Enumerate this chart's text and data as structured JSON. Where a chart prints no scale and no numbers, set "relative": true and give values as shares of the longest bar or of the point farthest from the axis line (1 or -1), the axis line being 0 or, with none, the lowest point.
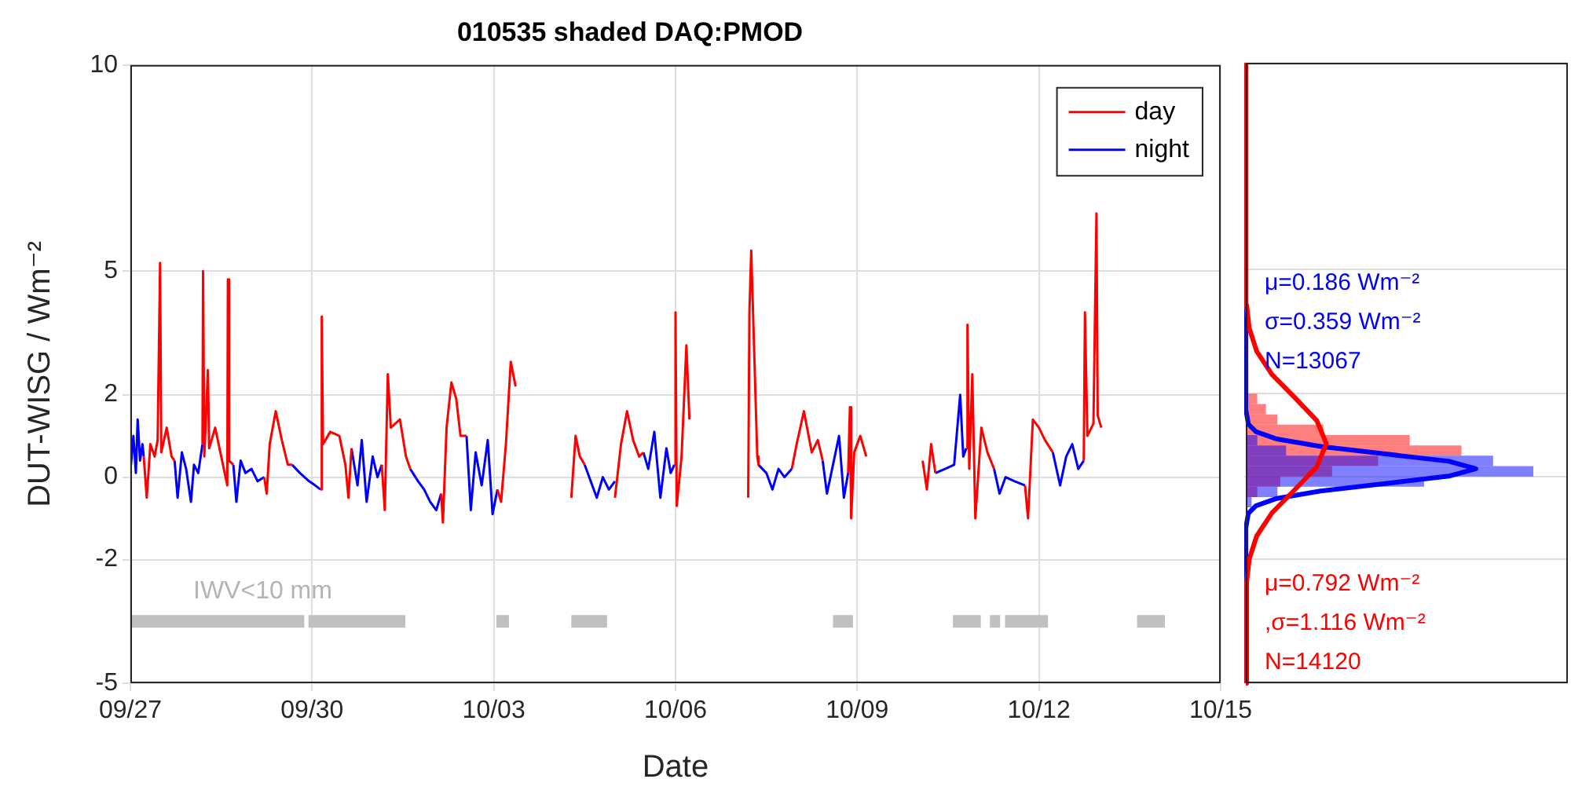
{
  "chart_data": [
    {
      "type": "line",
      "title": "010535 shaded DAQ:PMOD",
      "xlabel": "Date",
      "ylabel": "DUT-WISG / Wm⁻²",
      "xlim": [
        "--09-27",
        "--10-15"
      ],
      "xticks": [
        {
          "value": "--09-27",
          "label": "09/27"
        },
        {
          "value": "--09-30",
          "label": "09/30"
        },
        {
          "value": "--10-03",
          "label": "10/03"
        },
        {
          "value": "--10-06",
          "label": "10/06"
        },
        {
          "value": "--10-09",
          "label": "10/09"
        },
        {
          "value": "--10-12",
          "label": "10/12"
        },
        {
          "value": "--10-15",
          "label": "10/15"
        }
      ],
      "ylim": [
        -5,
        10
      ],
      "yticks": [
        -5,
        -2,
        0,
        2,
        5,
        10
      ],
      "grid": true,
      "legend": "top right",
      "annotations": [
        "IWV<10 mm"
      ],
      "series": [
        {
          "name": "day",
          "color": "#ff0000",
          "x": [
            "--09-27T05:17",
            "--09-27T06:29",
            "--09-27T07:55",
            "--09-27T09:36",
            "--09-27T10:48",
            "--09-27T11:46",
            "--09-27T12:14",
            "--09-27T14:24",
            "--09-27T16:19",
            "--09-27T17:31",
            null,
            "--09-28T04:34",
            "--09-28T04:48",
            "--09-28T05:17",
            "--09-28T06:43",
            "--09-28T07:12",
            "--09-28T09:36",
            "--09-28T12:00",
            "--09-28T14:24",
            "--09-28T14:38",
            "--09-28T15:07",
            "--09-28T16:48",
            null,
            "--09-29T05:02",
            "--09-29T06:00",
            "--09-29T07:12",
            "--09-29T09:36",
            "--09-29T12:00",
            "--09-29T14:24",
            "--09-29T16:05",
            null,
            "--09-30T03:22",
            "--09-30T03:50",
            "--09-30T04:19",
            "--09-30T07:12",
            "--09-30T10:48",
            "--09-30T13:12",
            "--09-30T14:24",
            "--09-30T15:36",
            null,
            "--10-01T03:36",
            "--10-01T04:48",
            "--10-01T06:00",
            "--10-01T07:12",
            "--10-01T10:48",
            "--10-01T13:12",
            "--10-01T14:53",
            null,
            "--10-02T03:07",
            "--10-02T03:50",
            "--10-02T05:17",
            "--10-02T07:12",
            "--10-02T09:07",
            "--10-02T10:48",
            "--10-02T13:12",
            null,
            "--10-03T01:26",
            "--10-03T02:53",
            "--10-03T04:48",
            "--10-03T06:43",
            "--10-03T08:38",
            null,
            "--10-04T06:43",
            "--10-04T08:24",
            "--10-04T10:05",
            "--10-04T12:00",
            null,
            "--10-05T00:00",
            "--10-05T02:24",
            "--10-05T04:48",
            "--10-05T07:12",
            "--10-05T09:36",
            "--10-05T11:17",
            null,
            "--10-05T23:31",
            "--10-06T00:00",
            "--10-06T00:29",
            "--10-06T02:24",
            "--10-06T04:19",
            "--10-06T05:31",
            null,
            "--10-07T04:48",
            "--10-07T05:17",
            "--10-07T06:00",
            "--10-07T07:12",
            "--10-07T08:24",
            "--10-07T08:53",
            null,
            "--10-07T22:05",
            "--10-08T00:00",
            "--10-08T02:53",
            "--10-08T06:00",
            "--10-08T08:24",
            "--10-08T10:19",
            null,
            "--10-08T20:24",
            "--10-08T21:07",
            "--10-08T21:36",
            "--10-08T22:48",
            "--10-09T01:12",
            "--10-09T03:36",
            null,
            "--10-10T01:55",
            "--10-10T03:36",
            "--10-10T05:17",
            "--10-10T06:58",
            null,
            "--10-10T19:12",
            "--10-10T19:41",
            "--10-10T20:24",
            "--10-10T21:36",
            "--10-10T22:48",
            "--10-11T01:12",
            "--10-11T03:36",
            "--10-11T06:14",
            null,
            "--10-11T18:29",
            "--10-11T19:41",
            "--10-11T21:36",
            "--10-12T00:00",
            "--10-12T02:24",
            "--10-12T05:31",
            null,
            "--10-12T17:46",
            "--10-12T18:14",
            "--10-12T19:12",
            "--10-12T21:36",
            "--10-12T22:48",
            "--10-12T23:17",
            "--10-13T00:43"
          ],
          "values": [
            0.5,
            -0.5,
            0.8,
            0.5,
            0.9,
            5.2,
            0.6,
            1.2,
            0.5,
            0.4,
            null,
            0.8,
            5.0,
            0.5,
            2.6,
            0.7,
            1.2,
            0.5,
            -0.2,
            4.8,
            0.4,
            0.3,
            null,
            0.0,
            -0.4,
            0.8,
            1.6,
            0.9,
            0.3,
            0.3,
            null,
            -0.3,
            3.9,
            0.8,
            1.1,
            1.0,
            0.3,
            -0.5,
            0.7,
            null,
            0.3,
            -0.8,
            2.5,
            1.2,
            1.4,
            0.5,
            0.2,
            null,
            -0.4,
            -1.1,
            1.2,
            2.3,
            1.9,
            1.0,
            1.0,
            null,
            -0.3,
            -0.6,
            0.8,
            2.8,
            2.2,
            null,
            -0.5,
            1.0,
            0.5,
            0.3,
            null,
            -0.5,
            0.8,
            1.6,
            0.9,
            0.5,
            0.6,
            null,
            0.3,
            4.0,
            -0.7,
            0.5,
            3.2,
            1.4,
            null,
            -0.5,
            4.0,
            5.5,
            3.0,
            0.5,
            0.3,
            null,
            0.2,
            0.8,
            1.6,
            0.6,
            0.9,
            0.4,
            null,
            0.1,
            1.7,
            -1.0,
            0.6,
            1.0,
            0.5,
            null,
            0.4,
            -0.3,
            0.8,
            0.1,
            null,
            0.7,
            3.7,
            0.2,
            2.5,
            -1.0,
            1.2,
            0.6,
            0.2,
            null,
            -0.2,
            -1.0,
            1.4,
            1.2,
            0.9,
            0.6,
            null,
            0.4,
            4.0,
            1.0,
            1.3,
            6.4,
            1.5,
            1.2
          ]
        },
        {
          "name": "night",
          "color": "#0000ff",
          "x": [
            "--09-27T00:14",
            "--09-27T01:12",
            "--09-27T02:10",
            "--09-27T02:53",
            "--09-27T03:50",
            "--09-27T04:48",
            "--09-27T05:17",
            null,
            "--09-27T17:31",
            "--09-27T18:43",
            "--09-27T20:24",
            "--09-27T22:05",
            "--09-28T00:00",
            "--09-28T01:12",
            "--09-28T02:53",
            "--09-28T04:34",
            null,
            "--09-28T16:48",
            "--09-28T18:00",
            "--09-28T19:41",
            "--09-28T21:36",
            "--09-29T00:00",
            "--09-29T02:24",
            "--09-29T05:02",
            null,
            "--09-29T16:05",
            "--09-29T19:12",
            "--09-29T22:48",
            "--09-30T01:12",
            "--09-30T03:22",
            null,
            "--09-30T15:36",
            "--09-30T18:00",
            "--09-30T19:41",
            "--09-30T21:36",
            "--10-01T00:00",
            "--10-01T01:55",
            "--10-01T03:36",
            null,
            "--10-01T14:53",
            "--10-01T18:00",
            "--10-01T20:24",
            "--10-01T22:48",
            "--10-02T01:12",
            "--10-02T03:07",
            null,
            "--10-02T13:12",
            "--10-02T14:53",
            "--10-02T16:48",
            "--10-02T19:12",
            "--10-02T21:36",
            "--10-02T23:31",
            "--10-03T01:26",
            null,
            "--10-04T12:00",
            "--10-04T14:24",
            "--10-04T16:48",
            "--10-04T19:12",
            "--10-04T21:36",
            "--10-05T00:00",
            null,
            "--10-05T11:17",
            "--10-05T13:12",
            "--10-05T15:36",
            "--10-05T18:00",
            "--10-05T20:24",
            "--10-05T22:05",
            "--10-05T23:31",
            null,
            "--10-07T08:53",
            "--10-07T12:00",
            "--10-07T14:24",
            "--10-07T16:48",
            "--10-07T19:12",
            "--10-07T22:05",
            null,
            "--10-08T10:19",
            "--10-08T12:00",
            "--10-08T14:24",
            "--10-08T16:48",
            "--10-08T18:43",
            "--10-08T20:24",
            null,
            "--10-10T06:58",
            "--10-10T10:48",
            "--10-10T14:24",
            "--10-10T16:48",
            "--10-10T18:00",
            "--10-10T19:12",
            null,
            "--10-11T06:14",
            "--10-11T08:24",
            "--10-11T10:48",
            "--10-11T14:24",
            "--10-11T18:29",
            null,
            "--10-12T05:31",
            "--10-12T08:24",
            "--10-12T10:48",
            "--10-12T13:12",
            "--10-12T15:36",
            "--10-12T17:46"
          ],
          "values": [
            0.3,
            1.0,
            0.1,
            1.4,
            0.4,
            0.8,
            0.5,
            null,
            0.4,
            -0.5,
            0.6,
            0.2,
            -0.6,
            0.3,
            0.1,
            0.8,
            null,
            0.3,
            -0.6,
            0.4,
            0.1,
            0.2,
            -0.1,
            0.0,
            null,
            0.3,
            0.1,
            -0.1,
            -0.2,
            -0.3,
            null,
            0.7,
            -0.2,
            0.9,
            -0.6,
            0.5,
            0.0,
            0.3,
            null,
            0.2,
            -0.1,
            -0.3,
            -0.6,
            -0.8,
            -0.4,
            null,
            1.0,
            -0.8,
            0.6,
            -0.2,
            0.9,
            -0.9,
            -0.3,
            null,
            0.3,
            -0.1,
            -0.5,
            0.0,
            -0.3,
            -0.1,
            null,
            0.6,
            0.2,
            1.1,
            -0.5,
            0.7,
            0.1,
            0.3,
            null,
            0.3,
            0.1,
            -0.3,
            0.2,
            0.0,
            0.2,
            null,
            0.4,
            -0.4,
            0.3,
            1.0,
            -0.5,
            0.1,
            null,
            0.1,
            0.2,
            0.3,
            2.0,
            0.5,
            0.7,
            null,
            0.2,
            -0.4,
            0.0,
            -0.1,
            -0.2,
            null,
            0.6,
            -0.2,
            0.5,
            0.8,
            0.2,
            0.4
          ]
        },
        {
          "color": "#c0c0c0",
          "x": [
            "--09-27T00:00",
            "--09-29T20:53",
            null,
            "--09-29T22:34",
            "--10-01T12:58",
            null,
            "--10-03T01:00",
            "--10-03T06:00",
            null,
            "--10-04T06:43",
            "--10-04T20:53",
            null,
            "--10-08T14:24",
            "--10-08T22:19",
            null,
            "--10-10T13:55",
            "--10-11T00:58",
            null,
            "--10-11T04:34",
            "--10-11T08:38",
            null,
            "--10-11T10:34",
            "--10-12T03:36",
            null,
            "--10-13T14:53",
            "--10-14T01:55"
          ],
          "values": [
            -3.5,
            -3.5,
            null,
            -3.5,
            -3.5,
            null,
            -3.5,
            -3.5,
            null,
            -3.5,
            -3.5,
            null,
            -3.5,
            -3.5,
            null,
            -3.5,
            -3.5,
            null,
            -3.5,
            -3.5,
            null,
            -3.5,
            -3.5,
            null,
            -3.5,
            -3.5
          ]
        }
      ]
    },
    {
      "type": "histogram",
      "orientation": "horizontal",
      "relative": true,
      "tick_labels": false,
      "grid": "y",
      "ylim": [
        -5,
        10
      ],
      "yticks": [
        -5,
        -2,
        0,
        2,
        5,
        10
      ],
      "bins": [
        -0.75,
        -0.5,
        -0.25,
        0,
        0.25,
        0.5,
        0.75,
        1.0,
        1.25,
        1.5,
        1.75,
        2.0
      ],
      "annotations": [
        "μ=0.186 Wm⁻²",
        "σ=0.359 Wm⁻²",
        "N=13067",
        "μ=0.792 Wm⁻²",
        ",σ=1.116 Wm⁻²",
        "N=14120"
      ],
      "series": [
        {
          "color": "#ff0000",
          "values": [
            null,
            0.04,
            0.12,
            0.3,
            0.46,
            0.75,
            0.57,
            0.27,
            0.11,
            0.07,
            0.04
          ]
        },
        {
          "color": "#0000ff",
          "values": [
            0.02,
            0.11,
            0.62,
            1.0,
            0.86,
            0.14,
            0.04,
            null,
            null,
            null,
            null
          ]
        },
        {
          "type": "line",
          "color": "#ff0000",
          "x": [
            -5,
            -2.556,
            -1.998,
            -1.44,
            -0.882,
            -0.324,
            0.234,
            0.792,
            1.35,
            1.908,
            2.466,
            3.024,
            3.582,
            4.14,
            10
          ],
          "values": [
            0,
            0.003,
            0.012,
            0.038,
            0.091,
            0.17,
            0.247,
            0.28,
            0.247,
            0.17,
            0.091,
            0.038,
            0.012,
            0.003,
            0
          ]
        },
        {
          "type": "line",
          "color": "#0000ff",
          "x": [
            -5,
            -1.25,
            -0.891,
            -0.712,
            -0.532,
            -0.353,
            -0.173,
            0.006,
            0.186,
            0.366,
            0.545,
            0.725,
            0.904,
            1.084,
            1.263,
            1.622,
            10
          ],
          "values": [
            0,
            0,
            0.009,
            0.035,
            0.108,
            0.26,
            0.485,
            0.706,
            0.8,
            0.706,
            0.485,
            0.26,
            0.108,
            0.035,
            0.009,
            0,
            0
          ]
        }
      ]
    }
  ]
}
